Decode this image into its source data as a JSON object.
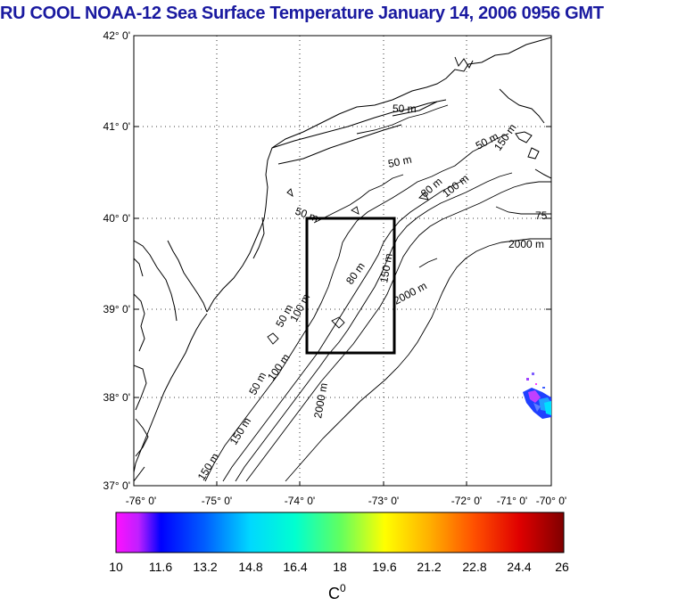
{
  "title": "RU COOL  NOAA-12 Sea Surface Temperature January 14, 2006 0956 GMT",
  "lat_labels": [
    "42° 0'",
    "41° 0'",
    "40° 0'",
    "39° 0'",
    "38° 0'",
    "37° 0'"
  ],
  "lon_labels": [
    "-76° 0'",
    "-75° 0'",
    "-74° 0'",
    "-73° 0'",
    "-72° 0'",
    "-71° 0'",
    "-70° 0'"
  ],
  "contour_labels": {
    "c50_a": "50 m",
    "c50_b": "50 m",
    "c50_c": "50 m",
    "c50_d": "50 m",
    "c50_e": "50 m",
    "c50_f": "50 m",
    "c80_a": "80 m",
    "c80_b": "80 m",
    "c100_a": "100 m",
    "c100_b": "100 m",
    "c100_c": "100 m",
    "c150_a": "150 m",
    "c150_b": "150 m",
    "c150_c": "150 m",
    "c150_d": "150 m",
    "c75": "75",
    "c2000_a": "2000 m",
    "c2000_b": "2000 m",
    "c2000_c": "2000 m"
  },
  "colorbar": {
    "ticks": [
      "10",
      "11.6",
      "13.2",
      "14.8",
      "16.4",
      "18",
      "19.6",
      "21.2",
      "22.8",
      "24.4",
      "26"
    ],
    "unit": "C",
    "unit_sup": "0",
    "colors": [
      "#ff00ff",
      "#0000ff",
      "#00ffff",
      "#00ff80",
      "#ffff00",
      "#ff8000",
      "#ff0000",
      "#800000"
    ]
  }
}
